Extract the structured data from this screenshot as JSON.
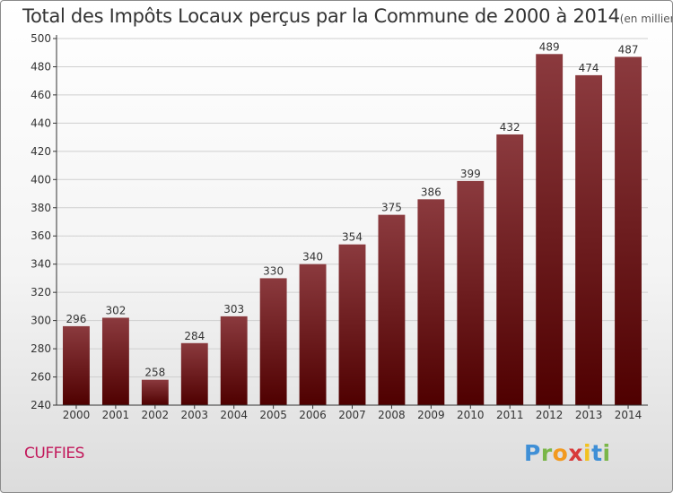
{
  "header": {
    "title": "Total des Impôts Locaux perçus par la Commune de 2000 à 2014",
    "unit": "(en milliers d'€)"
  },
  "commune": "CUFFIES",
  "brand": {
    "letters": [
      "P",
      "r",
      "o",
      "x",
      "i",
      "t",
      "i"
    ],
    "colors": [
      "#3f8fd6",
      "#7ab648",
      "#f29a1f",
      "#d83a3a",
      "#f2c21f",
      "#3f8fd6",
      "#7ab648"
    ]
  },
  "colors": {
    "bar_top": "#8b3a3e",
    "bar_bottom": "#4f0000",
    "grid": "#cfcfcf",
    "axis": "#333333"
  },
  "chart_data": {
    "type": "bar",
    "title": "Total des Impôts Locaux perçus par la Commune de 2000 à 2014",
    "xlabel": "",
    "ylabel": "en milliers d'€",
    "categories": [
      "2000",
      "2001",
      "2002",
      "2003",
      "2004",
      "2005",
      "2006",
      "2007",
      "2008",
      "2009",
      "2010",
      "2011",
      "2012",
      "2013",
      "2014"
    ],
    "values": [
      296,
      302,
      258,
      284,
      303,
      330,
      340,
      354,
      375,
      386,
      399,
      432,
      489,
      474,
      487
    ],
    "ylim": [
      240,
      500
    ],
    "yticks": [
      240,
      260,
      280,
      300,
      320,
      340,
      360,
      380,
      400,
      420,
      440,
      460,
      480,
      500
    ],
    "grid": true
  }
}
